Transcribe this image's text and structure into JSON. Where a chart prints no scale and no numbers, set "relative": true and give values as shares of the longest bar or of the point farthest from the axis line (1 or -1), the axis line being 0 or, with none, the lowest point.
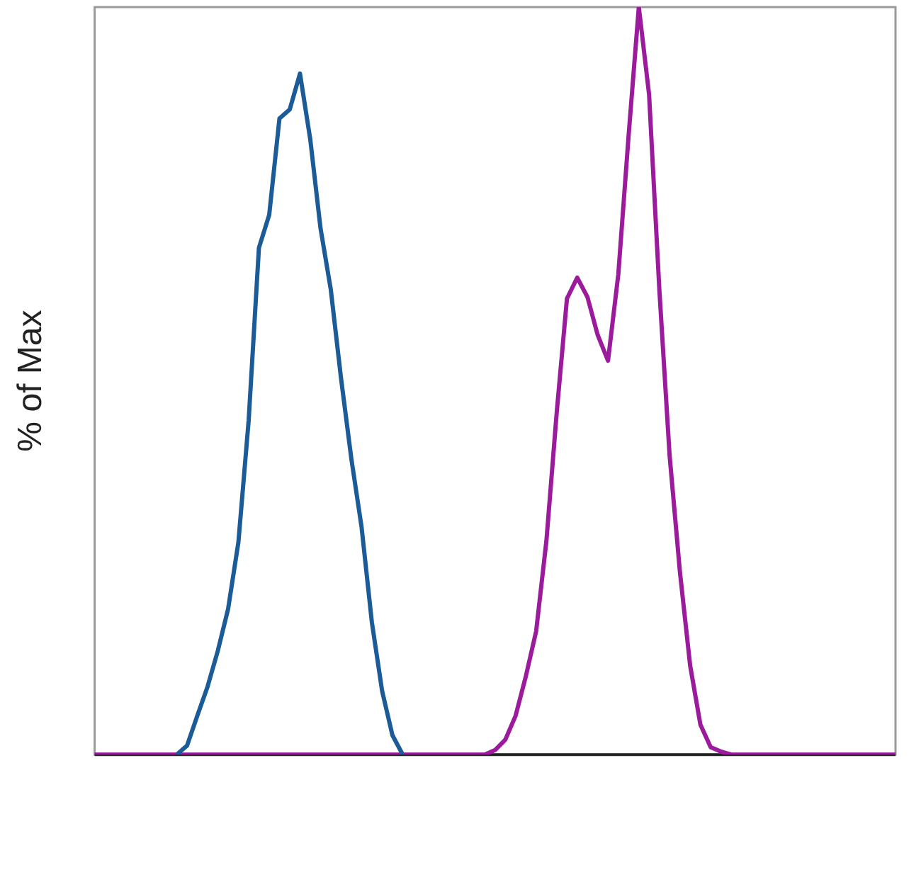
{
  "chart_data": {
    "type": "line",
    "ylabel": "% of Max",
    "relative": true,
    "marker": "none",
    "categories": [
      null,
      null,
      null,
      null,
      null,
      null,
      null,
      null,
      null,
      null,
      null,
      null,
      null,
      null,
      null,
      null,
      null,
      null,
      null,
      null,
      null,
      null,
      null,
      null,
      null,
      null,
      null,
      null,
      null,
      null,
      null,
      null,
      null,
      null,
      null,
      null,
      null,
      null,
      null,
      null,
      null,
      null,
      null,
      null,
      null,
      null,
      null,
      null,
      null,
      null,
      null,
      null,
      null,
      null,
      null,
      null,
      null,
      null,
      null,
      null,
      null,
      null,
      null,
      null,
      null,
      null,
      null,
      null,
      null,
      null,
      null,
      null,
      null,
      null,
      null,
      null,
      null,
      null,
      null
    ],
    "series": [
      {
        "color": "#1b5c98",
        "values": [
          null,
          null,
          null,
          null,
          null,
          null,
          null,
          null,
          0,
          0.012,
          0.052,
          0.091,
          0.139,
          0.195,
          0.284,
          0.447,
          0.678,
          0.722,
          0.851,
          0.863,
          0.911,
          0.823,
          0.704,
          0.622,
          0.503,
          0.396,
          0.304,
          0.177,
          0.085,
          0.026,
          0,
          null,
          null,
          null,
          null,
          null,
          null,
          null,
          null,
          null,
          null,
          null,
          null,
          null,
          null,
          null,
          null,
          null,
          null,
          null,
          null,
          null,
          null,
          null,
          null,
          null,
          null,
          null,
          null,
          null,
          null,
          null,
          null,
          null,
          null,
          null,
          null,
          null,
          null,
          null,
          null,
          null,
          null,
          null,
          null,
          null,
          null,
          null,
          null
        ]
      },
      {
        "color": "#9c1a9c",
        "values": [
          0,
          0,
          0,
          0,
          0,
          0,
          0,
          0,
          0,
          0,
          0,
          0,
          0,
          0,
          0,
          0,
          0,
          0,
          0,
          0,
          0,
          0,
          0,
          0,
          0,
          0,
          0,
          0,
          0,
          0,
          0,
          0,
          0,
          0,
          0,
          0,
          0,
          0,
          0,
          0.006,
          0.02,
          0.052,
          0.105,
          0.165,
          0.286,
          0.457,
          0.61,
          0.638,
          0.612,
          0.561,
          0.527,
          0.642,
          0.827,
          1,
          0.883,
          0.622,
          0.4,
          0.245,
          0.119,
          0.04,
          0.01,
          0.004,
          0,
          0,
          0,
          0,
          0,
          0,
          0,
          0,
          0,
          0,
          0,
          0,
          0,
          0,
          0,
          0,
          0
        ]
      }
    ]
  }
}
